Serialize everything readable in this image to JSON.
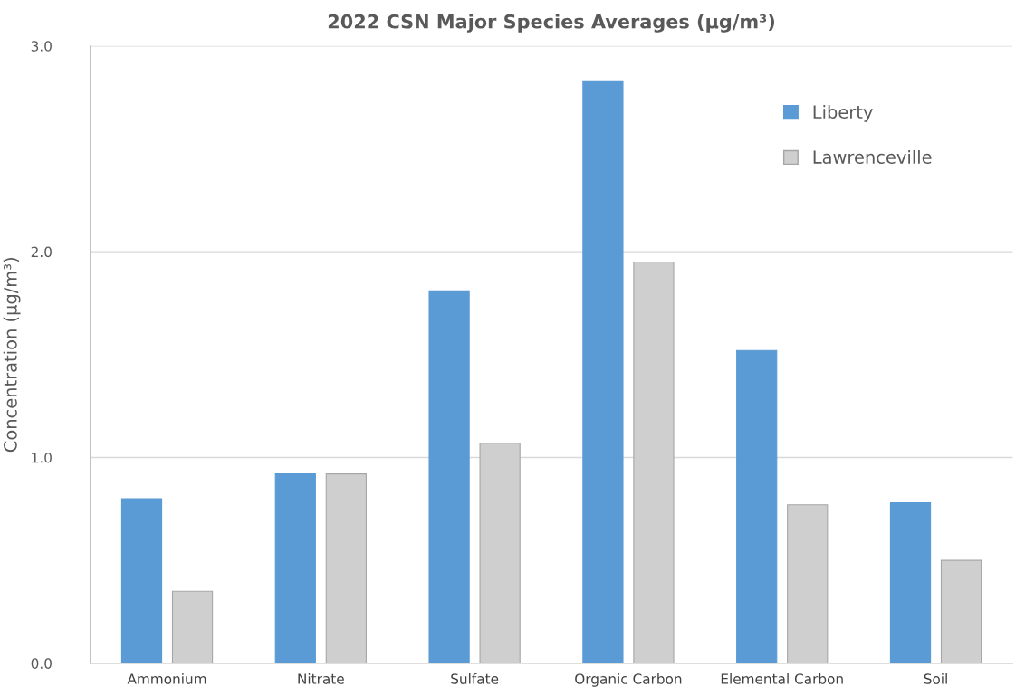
{
  "chart_data": {
    "type": "bar",
    "title": "2022 CSN Major Species Averages (µg/m³)",
    "ylabel": "Concentration (µg/m³)",
    "categories": [
      "Ammonium",
      "Nitrate",
      "Sulfate",
      "Organic Carbon",
      "Elemental Carbon",
      "Soil"
    ],
    "series": [
      {
        "name": "Liberty",
        "color": "#5b9bd5",
        "values": [
          0.8,
          0.92,
          1.81,
          2.83,
          1.52,
          0.78
        ]
      },
      {
        "name": "Lawrenceville",
        "color": "#d0cfd0",
        "values": [
          0.35,
          0.92,
          1.07,
          1.95,
          0.77,
          0.5
        ]
      }
    ],
    "ylim": [
      0,
      3
    ],
    "yticks": [
      {
        "value": 0,
        "label": "0.0"
      },
      {
        "value": 1,
        "label": "1.0"
      },
      {
        "value": 2,
        "label": "2.0"
      },
      {
        "value": 3,
        "label": "3.0"
      }
    ],
    "grid": "y",
    "legend": "top right"
  }
}
